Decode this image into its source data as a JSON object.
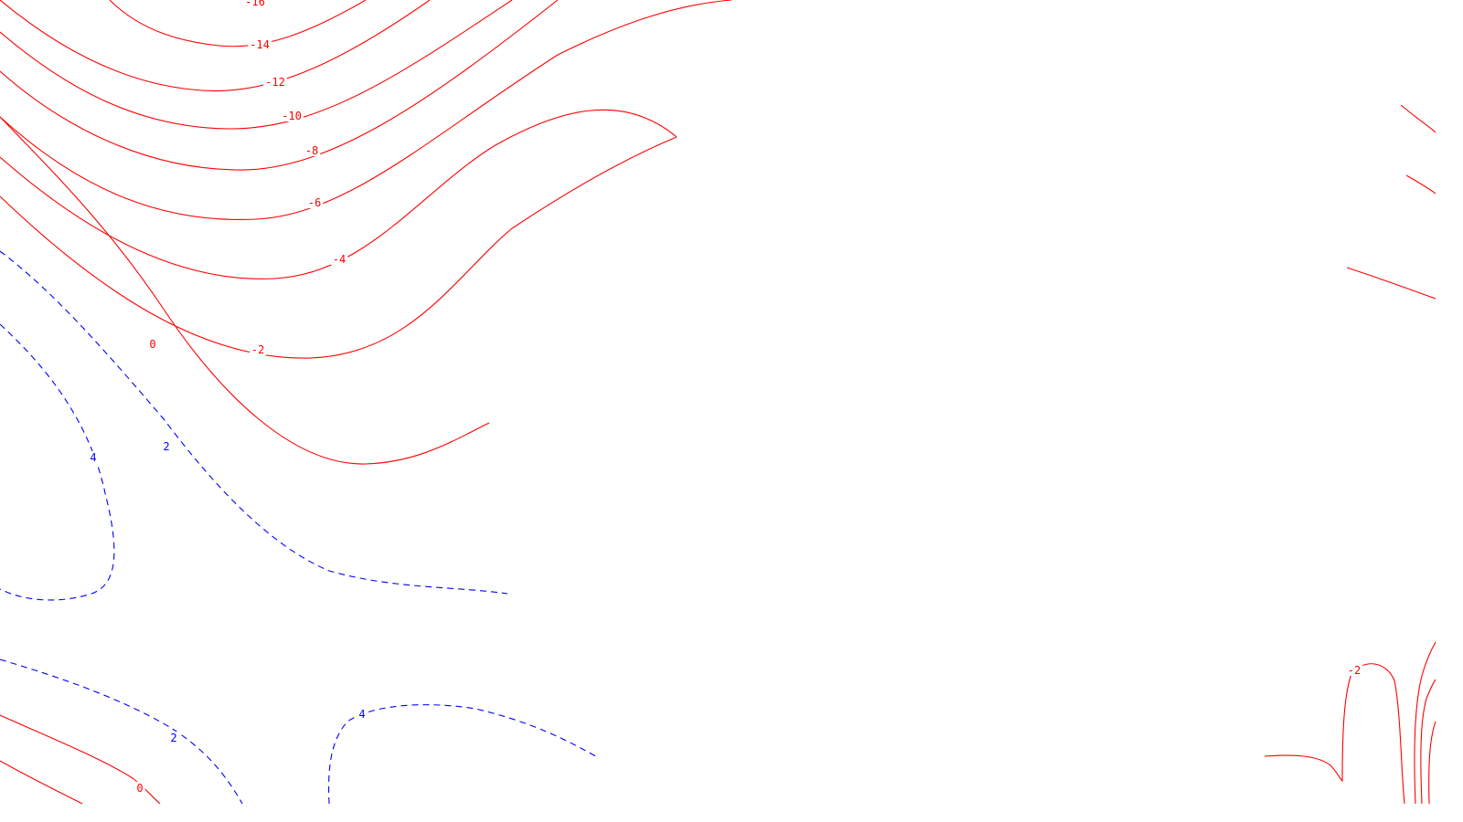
{
  "map": {
    "colors": {
      "negative_and_zero": "#ff0000",
      "positive": "#0000ff",
      "background": "#ffffff"
    },
    "negative_line_style": "solid",
    "positive_line_style": "dashed",
    "contour_labels": [
      "-16",
      "-14",
      "-12",
      "-10",
      "-8",
      "-6",
      "-4",
      "-2",
      "0",
      "2",
      "4",
      "2",
      "0",
      "4",
      "-2"
    ]
  }
}
